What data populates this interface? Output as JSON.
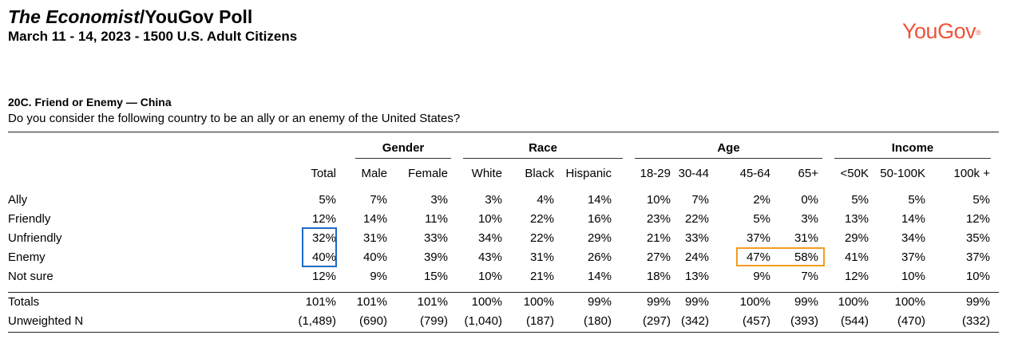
{
  "header": {
    "title_italic": "The Economist",
    "title_rest": "/YouGov Poll",
    "subtitle": "March 11 - 14, 2023 - 1500 U.S. Adult Citizens",
    "logo": "YouGov",
    "logo_mark": "®"
  },
  "question": {
    "title": "20C. Friend or Enemy — China",
    "text": "Do you consider the following country to be an ally or an enemy of the United States?"
  },
  "groups": [
    "Gender",
    "Race",
    "Age",
    "Income"
  ],
  "columns": [
    "Total",
    "Male",
    "Female",
    "White",
    "Black",
    "Hispanic",
    "18-29",
    "30-44",
    "45-64",
    "65+",
    "<50K",
    "50-100K",
    "100k +"
  ],
  "rows": [
    {
      "label": "Ally",
      "values": [
        "5%",
        "7%",
        "3%",
        "3%",
        "4%",
        "14%",
        "10%",
        "7%",
        "2%",
        "0%",
        "5%",
        "5%",
        "5%"
      ]
    },
    {
      "label": "Friendly",
      "values": [
        "12%",
        "14%",
        "11%",
        "10%",
        "22%",
        "16%",
        "23%",
        "22%",
        "5%",
        "3%",
        "13%",
        "14%",
        "12%"
      ]
    },
    {
      "label": "Unfriendly",
      "values": [
        "32%",
        "31%",
        "33%",
        "34%",
        "22%",
        "29%",
        "21%",
        "33%",
        "37%",
        "31%",
        "29%",
        "34%",
        "35%"
      ]
    },
    {
      "label": "Enemy",
      "values": [
        "40%",
        "40%",
        "39%",
        "43%",
        "31%",
        "26%",
        "27%",
        "24%",
        "47%",
        "58%",
        "41%",
        "37%",
        "37%"
      ]
    },
    {
      "label": "Not sure",
      "values": [
        "12%",
        "9%",
        "15%",
        "10%",
        "21%",
        "14%",
        "18%",
        "13%",
        "9%",
        "7%",
        "12%",
        "10%",
        "10%"
      ]
    }
  ],
  "totals": {
    "label": "Totals",
    "values": [
      "101%",
      "101%",
      "101%",
      "100%",
      "100%",
      "99%",
      "99%",
      "99%",
      "100%",
      "99%",
      "100%",
      "100%",
      "99%"
    ]
  },
  "unweighted": {
    "label": "Unweighted N",
    "values": [
      "(1,489)",
      "(690)",
      "(799)",
      "(1,040)",
      "(187)",
      "(180)",
      "(297)",
      "(342)",
      "(457)",
      "(393)",
      "(544)",
      "(470)",
      "(332)"
    ]
  },
  "highlight_colors": {
    "blue": "#1c6bc9",
    "orange": "#f39c1f"
  },
  "logo_color": "#f0523a"
}
